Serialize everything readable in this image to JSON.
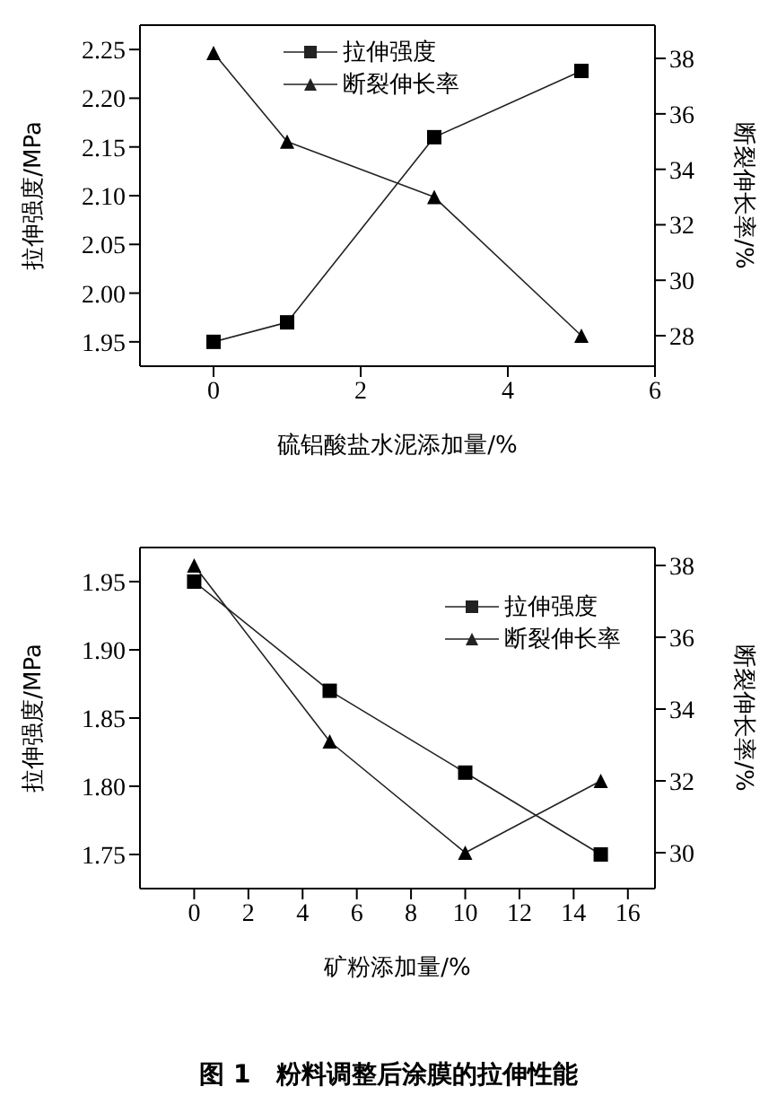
{
  "chart_data": [
    {
      "type": "line",
      "xlabel": "硫铝酸盐水泥添加量/%",
      "ylabel": "拉伸强度/MPa",
      "y2label": "断裂伸长率/%",
      "x": [
        0,
        1,
        3,
        5
      ],
      "xlim": [
        -1,
        6
      ],
      "xticks": [
        0,
        2,
        4,
        6
      ],
      "ylim": [
        1.925,
        2.275
      ],
      "yticks": [
        1.95,
        {
          "value": 2,
          "label": "2.00"
        },
        2.05,
        {
          "value": 2.1,
          "label": "2.10"
        },
        2.15,
        {
          "value": 2.2,
          "label": "2.20"
        },
        2.25
      ],
      "y2lim": [
        26.9,
        39.2
      ],
      "y2ticks": [
        28,
        30,
        32,
        34,
        36,
        38
      ],
      "grid": false,
      "legend": "top",
      "series": [
        {
          "name": "拉伸强度",
          "color": "#222222",
          "marker": "square",
          "values": [
            1.95,
            1.97,
            2.16,
            2.228
          ]
        },
        {
          "name": "断裂伸长率",
          "color": "#222222",
          "marker": "triangle",
          "axis": "y2",
          "values": [
            38.2,
            35,
            33,
            28
          ]
        }
      ]
    },
    {
      "type": "line",
      "xlabel": "矿粉添加量/%",
      "ylabel": "拉伸强度/MPa",
      "y2label": "断裂伸长率/%",
      "x": [
        0,
        5,
        10,
        15
      ],
      "xlim": [
        -2,
        17
      ],
      "xticks": [
        0,
        2,
        4,
        6,
        8,
        10,
        12,
        14,
        16
      ],
      "ylim": [
        1.725,
        1.975
      ],
      "yticks": [
        1.75,
        {
          "value": 1.8,
          "label": "1.80"
        },
        1.85,
        {
          "value": 1.9,
          "label": "1.90"
        },
        1.95
      ],
      "y2lim": [
        29,
        38.5
      ],
      "y2ticks": [
        30,
        32,
        34,
        36,
        38
      ],
      "grid": false,
      "legend": "top right",
      "annotations": [
        "图 1　粉料调整后涂膜的拉伸性能"
      ],
      "series": [
        {
          "name": "拉伸强度",
          "color": "#222222",
          "marker": "square",
          "values": [
            1.95,
            1.87,
            1.81,
            1.75
          ]
        },
        {
          "name": "断裂伸长率",
          "color": "#222222",
          "marker": "triangle",
          "axis": "y2",
          "values": [
            38,
            33.1,
            30,
            32
          ]
        }
      ]
    }
  ]
}
